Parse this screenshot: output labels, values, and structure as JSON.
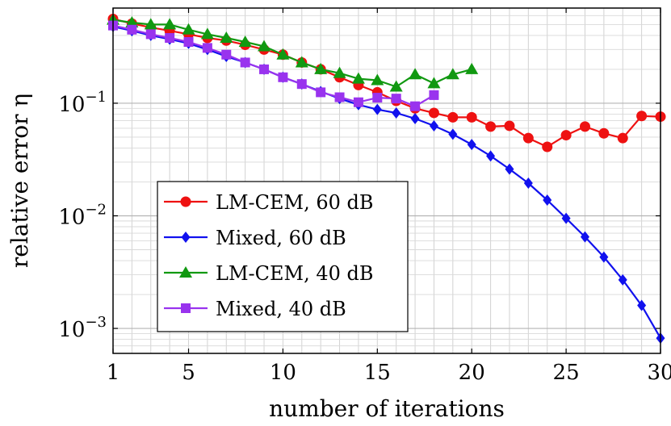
{
  "chart_data": {
    "type": "line",
    "title": "",
    "xlabel": "number of iterations",
    "ylabel": "relative error η",
    "xlim": [
      1,
      30
    ],
    "ylim": [
      0.0006,
      0.7
    ],
    "yscale": "log",
    "grid": true,
    "legend_position": "bottom-left",
    "x_ticks": [
      1,
      5,
      10,
      15,
      20,
      25,
      30
    ],
    "x_tick_labels": [
      "1",
      "5",
      "10",
      "15",
      "20",
      "25",
      "30"
    ],
    "y_ticks": [
      {
        "value": 0.1,
        "base": "10",
        "exponent": "−1"
      },
      {
        "value": 0.01,
        "base": "10",
        "exponent": "−2"
      },
      {
        "value": 0.001,
        "base": "10",
        "exponent": "−3"
      }
    ],
    "series": [
      {
        "name": "LM-CEM, 60 dB",
        "color": "#ee1111",
        "marker": "circle",
        "x": [
          1,
          2,
          3,
          4,
          5,
          6,
          7,
          8,
          9,
          10,
          11,
          12,
          13,
          14,
          15,
          16,
          17,
          18,
          19,
          20,
          21,
          22,
          23,
          24,
          25,
          26,
          27,
          28,
          29,
          30
        ],
        "values": [
          0.56,
          0.51,
          0.47,
          0.44,
          0.41,
          0.38,
          0.36,
          0.33,
          0.3,
          0.27,
          0.23,
          0.2,
          0.17,
          0.145,
          0.125,
          0.105,
          0.09,
          0.082,
          0.075,
          0.075,
          0.062,
          0.063,
          0.049,
          0.041,
          0.052,
          0.062,
          0.054,
          0.049,
          0.077,
          0.076
        ]
      },
      {
        "name": "Mixed, 60 dB",
        "color": "#1111ee",
        "marker": "diamond",
        "x": [
          1,
          2,
          3,
          4,
          5,
          6,
          7,
          8,
          9,
          10,
          11,
          12,
          13,
          14,
          15,
          16,
          17,
          18,
          19,
          20,
          21,
          22,
          23,
          24,
          25,
          26,
          27,
          28,
          29,
          30
        ],
        "values": [
          0.48,
          0.44,
          0.4,
          0.37,
          0.34,
          0.3,
          0.26,
          0.23,
          0.2,
          0.17,
          0.148,
          0.127,
          0.11,
          0.097,
          0.088,
          0.082,
          0.073,
          0.063,
          0.053,
          0.043,
          0.034,
          0.026,
          0.0195,
          0.0138,
          0.0095,
          0.0065,
          0.0043,
          0.0027,
          0.0016,
          0.00082
        ]
      },
      {
        "name": "LM-CEM, 40 dB",
        "color": "#119911",
        "marker": "triangle",
        "x": [
          1,
          2,
          3,
          4,
          5,
          6,
          7,
          8,
          9,
          10,
          11,
          12,
          13,
          14,
          15,
          16,
          17,
          18,
          19,
          20
        ],
        "values": [
          0.55,
          0.52,
          0.5,
          0.5,
          0.45,
          0.41,
          0.38,
          0.35,
          0.32,
          0.27,
          0.23,
          0.2,
          0.185,
          0.165,
          0.16,
          0.14,
          0.18,
          0.15,
          0.18,
          0.2
        ]
      },
      {
        "name": "Mixed, 40 dB",
        "color": "#9933ee",
        "marker": "square",
        "x": [
          1,
          2,
          3,
          4,
          5,
          6,
          7,
          8,
          9,
          10,
          11,
          12,
          13,
          14,
          15,
          16,
          17,
          18
        ],
        "values": [
          0.49,
          0.45,
          0.41,
          0.38,
          0.35,
          0.31,
          0.27,
          0.23,
          0.2,
          0.17,
          0.148,
          0.125,
          0.113,
          0.102,
          0.112,
          0.11,
          0.094,
          0.118
        ]
      }
    ]
  }
}
